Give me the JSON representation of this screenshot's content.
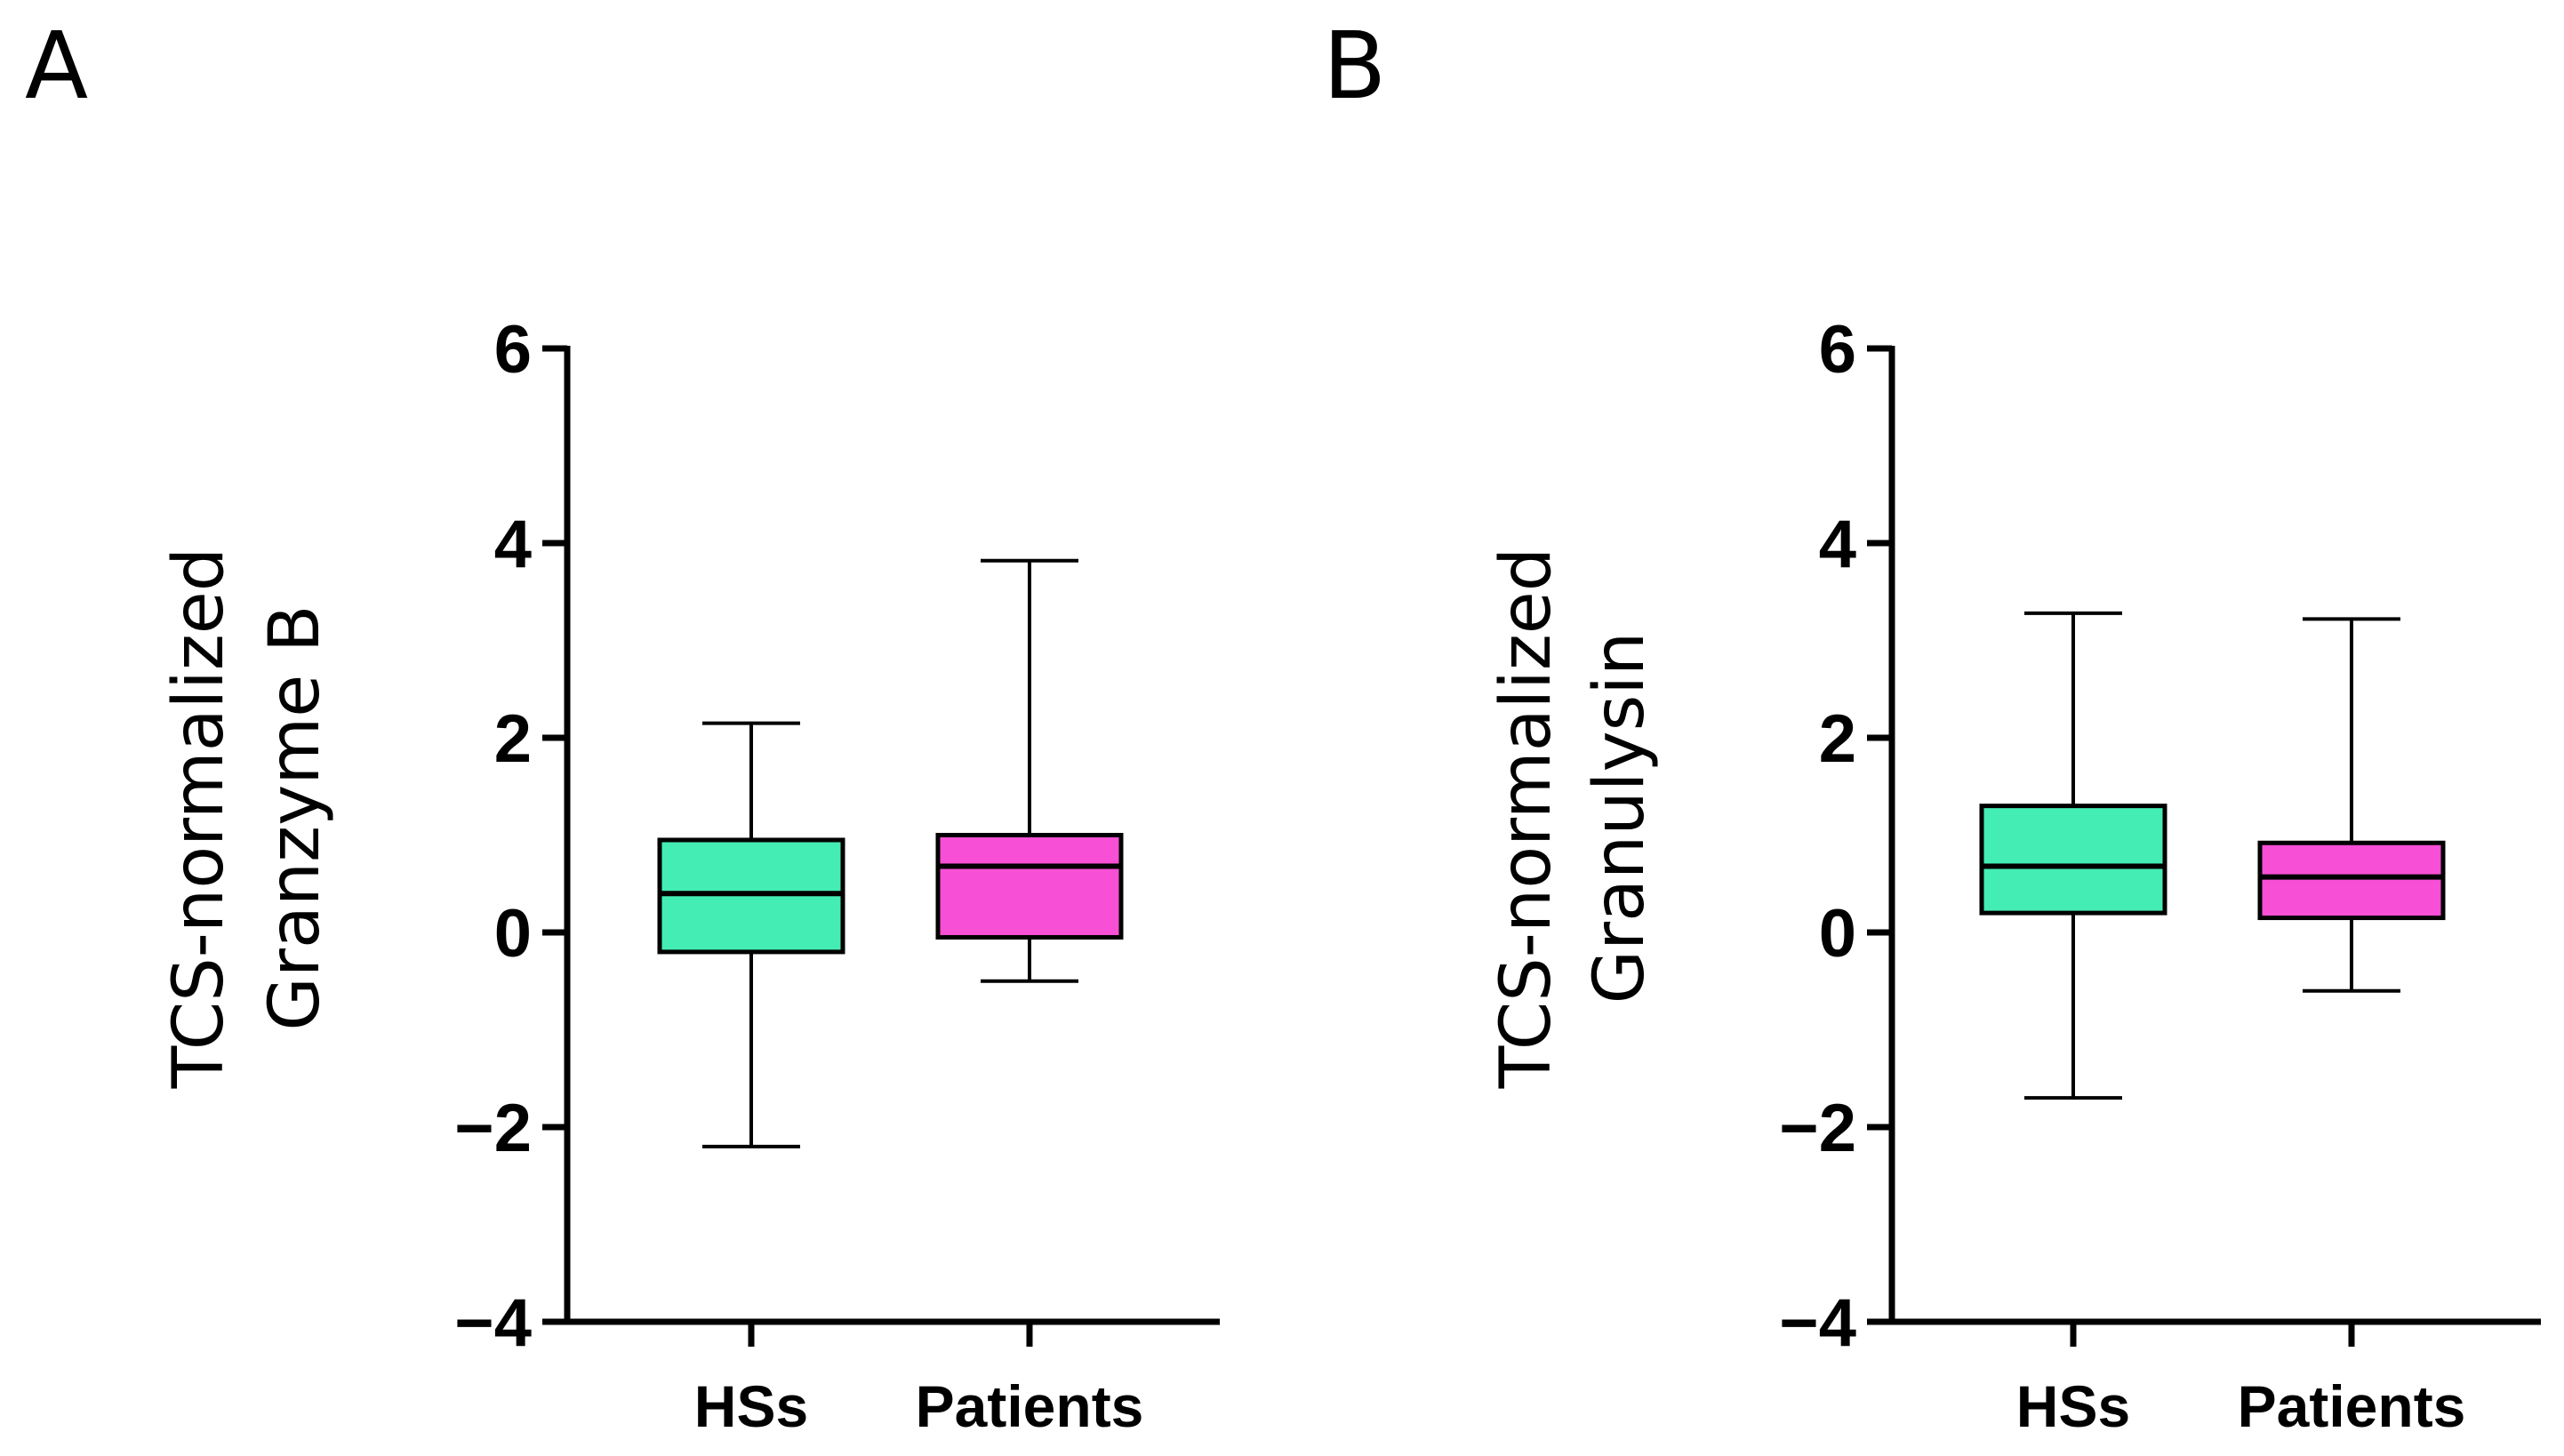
{
  "chart_data": [
    {
      "type": "box",
      "panel_label": "A",
      "title": "",
      "ylabel_lines": [
        "TCS-normalized",
        "Granzyme B"
      ],
      "xlabel": "",
      "ylim": [
        -4,
        6
      ],
      "yticks": [
        6,
        4,
        2,
        0,
        -2,
        -4
      ],
      "ytick_labels": [
        "6",
        "4",
        "2",
        "0",
        "−2",
        "−4"
      ],
      "categories": [
        "HSs",
        "Patients"
      ],
      "boxes": [
        {
          "name": "HSs",
          "min": -2.2,
          "q1": -0.2,
          "median": 0.4,
          "q3": 0.95,
          "max": 2.15,
          "color": "#44EDB3"
        },
        {
          "name": "Patients",
          "min": -0.5,
          "q1": -0.05,
          "median": 0.68,
          "q3": 1.0,
          "max": 3.82,
          "color": "#F74FD5"
        }
      ]
    },
    {
      "type": "box",
      "panel_label": "B",
      "title": "",
      "ylabel_lines": [
        "TCS-normalized",
        "Granulysin"
      ],
      "xlabel": "",
      "ylim": [
        -4,
        6
      ],
      "yticks": [
        6,
        4,
        2,
        0,
        -2,
        -4
      ],
      "ytick_labels": [
        "6",
        "4",
        "2",
        "0",
        "−2",
        "−4"
      ],
      "categories": [
        "HSs",
        "Patients"
      ],
      "boxes": [
        {
          "name": "HSs",
          "min": -1.7,
          "q1": 0.2,
          "median": 0.68,
          "q3": 1.3,
          "max": 3.28,
          "color": "#44EDB3"
        },
        {
          "name": "Patients",
          "min": -0.6,
          "q1": 0.15,
          "median": 0.57,
          "q3": 0.92,
          "max": 3.22,
          "color": "#F74FD5"
        }
      ]
    }
  ]
}
